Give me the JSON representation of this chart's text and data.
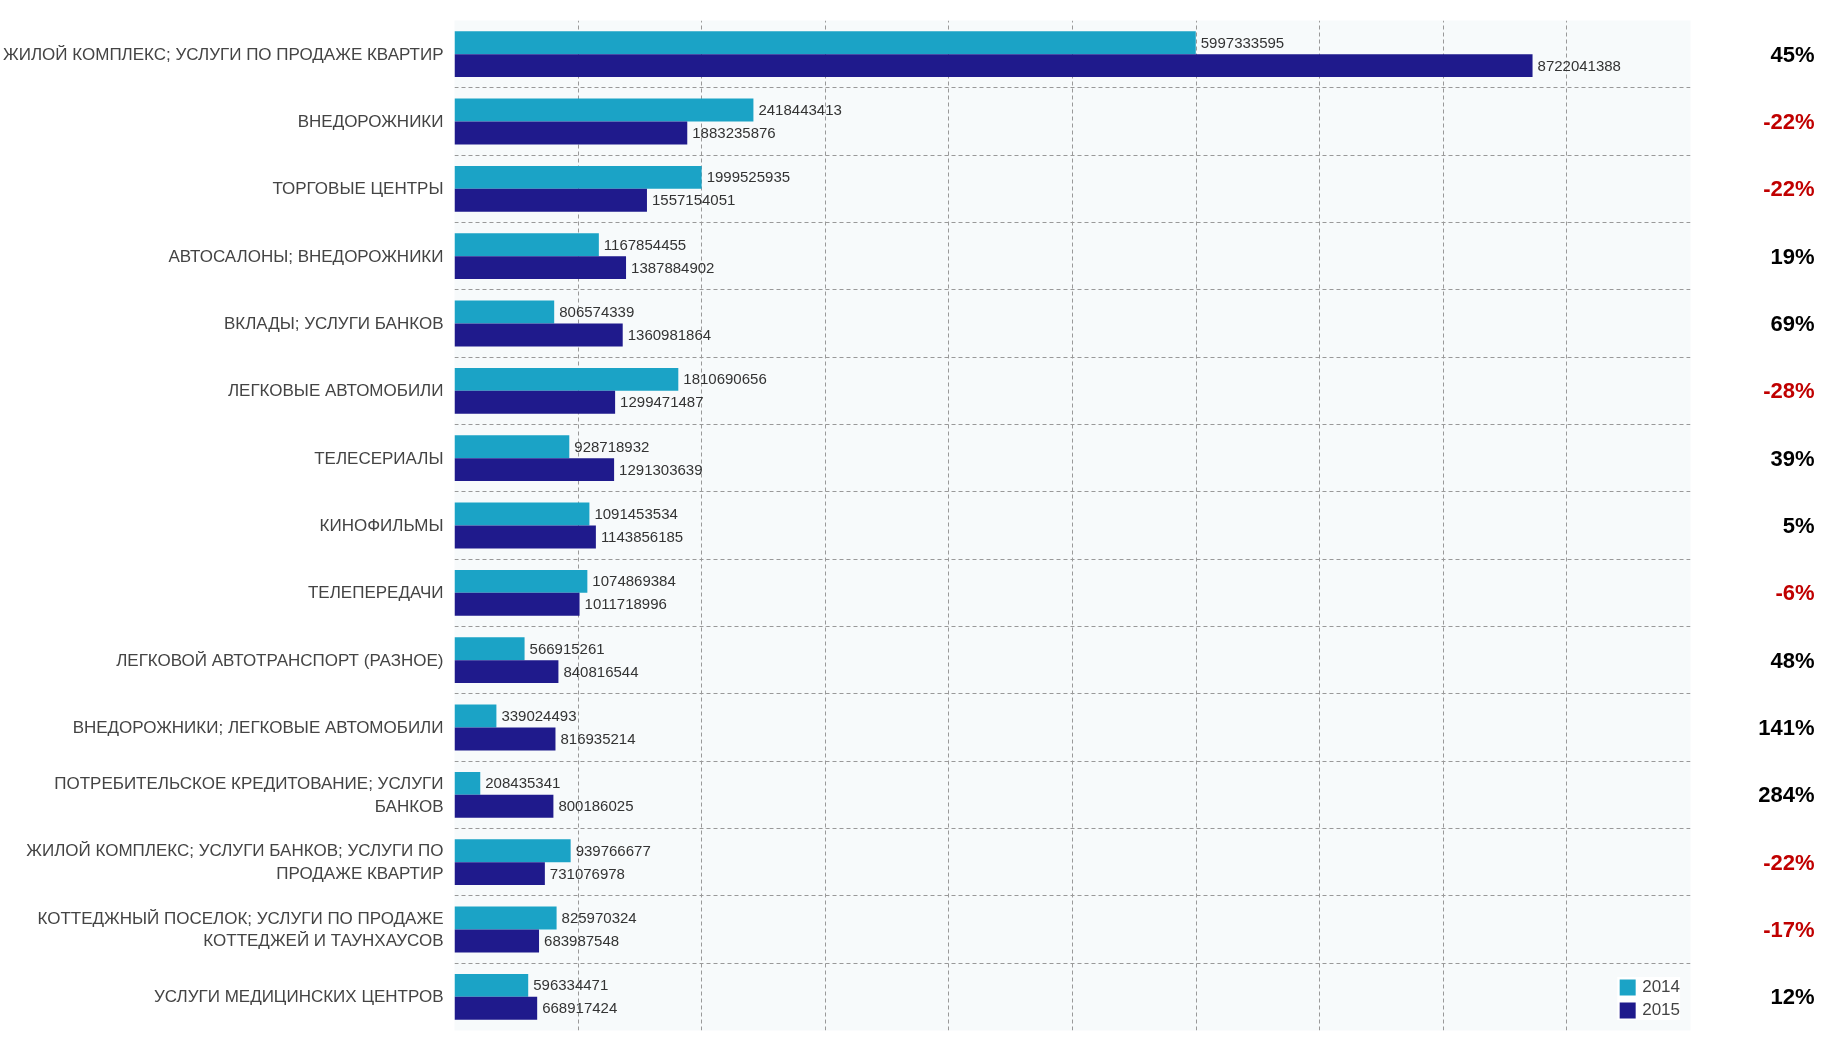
{
  "chart_data": {
    "type": "bar",
    "orientation": "horizontal",
    "categories": [
      "ЖИЛОЙ КОМПЛЕКС; УСЛУГИ ПО ПРОДАЖЕ КВАРТИР",
      "ВНЕДОРОЖНИКИ",
      "ТОРГОВЫЕ ЦЕНТРЫ",
      "АВТОСАЛОНЫ; ВНЕДОРОЖНИКИ",
      "ВКЛАДЫ; УСЛУГИ БАНКОВ",
      "ЛЕГКОВЫЕ АВТОМОБИЛИ",
      "ТЕЛЕСЕРИАЛЫ",
      "КИНОФИЛЬМЫ",
      "ТЕЛЕПЕРЕДАЧИ",
      "ЛЕГКОВОЙ АВТОТРАНСПОРТ (РАЗНОЕ)",
      "ВНЕДОРОЖНИКИ; ЛЕГКОВЫЕ АВТОМОБИЛИ",
      "ПОТРЕБИТЕЛЬСКОЕ КРЕДИТОВАНИЕ; УСЛУГИ БАНКОВ",
      "ЖИЛОЙ КОМПЛЕКС; УСЛУГИ БАНКОВ; УСЛУГИ ПО ПРОДАЖЕ КВАРТИР",
      "КОТТЕДЖНЫЙ ПОСЕЛОК; УСЛУГИ ПО ПРОДАЖЕ КОТТЕДЖЕЙ И ТАУНХАУСОВ",
      "УСЛУГИ МЕДИЦИНСКИХ ЦЕНТРОВ"
    ],
    "series": [
      {
        "name": "2014",
        "color": "#1ba3c6",
        "values": [
          5997333595,
          2418443413,
          1999525935,
          1167854455,
          806574339,
          1810690656,
          928718932,
          1091453534,
          1074869384,
          566915261,
          339024493,
          208435341,
          939766677,
          825970324,
          596334471
        ]
      },
      {
        "name": "2015",
        "color": "#1f1a8c",
        "values": [
          8722041388,
          1883235876,
          1557154051,
          1387884902,
          1360981864,
          1299471487,
          1291303639,
          1143856185,
          1011718996,
          840816544,
          816935214,
          800186025,
          731076978,
          683987548,
          668917424
        ]
      }
    ],
    "data_labels": true,
    "xlim": [
      0,
      10000000000
    ],
    "xticks": [
      {
        "value": 0,
        "label": null
      },
      {
        "value": 1000000000,
        "label": null
      },
      {
        "value": 2000000000,
        "label": null
      },
      {
        "value": 3000000000,
        "label": null
      },
      {
        "value": 4000000000,
        "label": null
      },
      {
        "value": 5000000000,
        "label": null
      },
      {
        "value": 6000000000,
        "label": null
      },
      {
        "value": 7000000000,
        "label": null
      },
      {
        "value": 8000000000,
        "label": null
      },
      {
        "value": 9000000000,
        "label": null
      },
      {
        "value": 10000000000,
        "label": null
      }
    ],
    "tick_labels": "y",
    "grid": true,
    "legend": "bottom right",
    "annotations": [
      "45%",
      "-22%",
      "-22%",
      "19%",
      "69%",
      "-28%",
      "39%",
      "5%",
      "-6%",
      "48%",
      "141%",
      "284%",
      "-22%",
      "-17%",
      "12%"
    ]
  }
}
